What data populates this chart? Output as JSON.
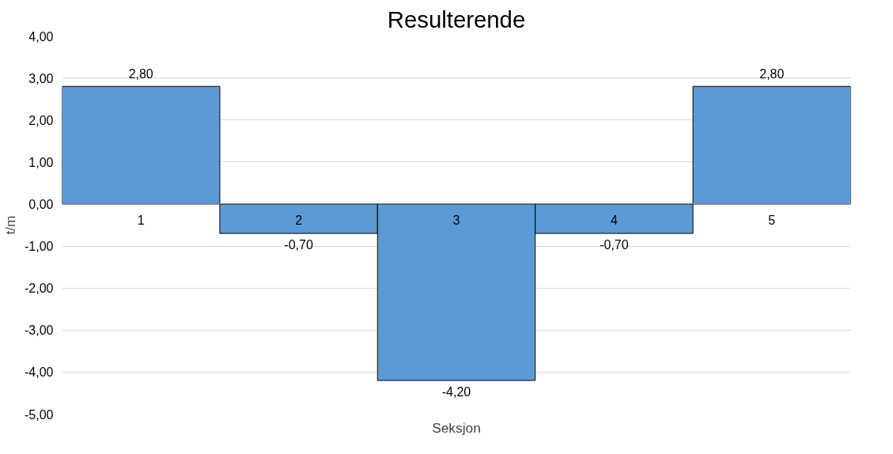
{
  "chart_data": {
    "type": "bar",
    "title": "Resulterende",
    "xlabel": "Seksjon",
    "ylabel": "t/m",
    "categories": [
      "1",
      "2",
      "3",
      "4",
      "5"
    ],
    "series": [
      {
        "color": "#5b9bd5",
        "values": [
          2.8,
          -0.7,
          -4.2,
          -0.7,
          2.8
        ],
        "value_labels": [
          "2,80",
          "-0,70",
          "-4,20",
          "-0,70",
          "2,80"
        ]
      }
    ],
    "ylim": [
      -5,
      4
    ],
    "yticks": [
      {
        "value": 4,
        "label": "4,00"
      },
      {
        "value": 3,
        "label": "3,00"
      },
      {
        "value": 2,
        "label": "2,00"
      },
      {
        "value": 1,
        "label": "1,00"
      },
      {
        "value": 0,
        "label": "0,00"
      },
      {
        "value": -1,
        "label": "-1,00"
      },
      {
        "value": -2,
        "label": "-2,00"
      },
      {
        "value": -3,
        "label": "-3,00"
      },
      {
        "value": -4,
        "label": "-4,00"
      },
      {
        "value": -5,
        "label": "-5,00"
      }
    ],
    "grid": "y"
  }
}
